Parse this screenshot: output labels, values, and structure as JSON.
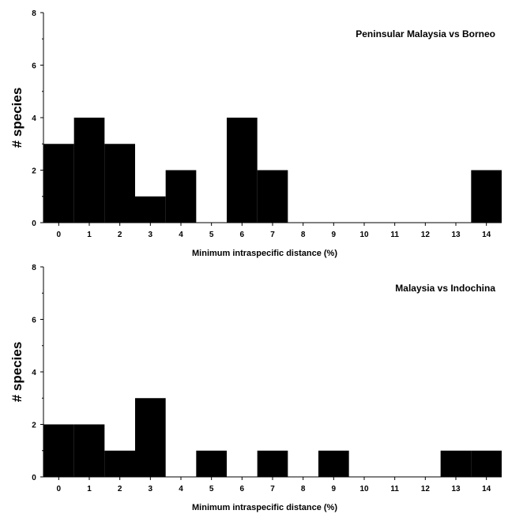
{
  "chart_data": [
    {
      "type": "bar",
      "title": "Peninsular Malaysia vs Borneo",
      "xlabel": "Minimum intraspecific distance (%)",
      "ylabel": "# species",
      "ylim": [
        0,
        8
      ],
      "yticks": [
        0,
        2,
        4,
        6,
        8
      ],
      "categories": [
        "0",
        "1",
        "2",
        "3",
        "4",
        "5",
        "6",
        "7",
        "8",
        "9",
        "10",
        "11",
        "12",
        "13",
        "14"
      ],
      "values": [
        3,
        4,
        3,
        1,
        2,
        0,
        4,
        2,
        0,
        0,
        0,
        0,
        0,
        0,
        2
      ],
      "grid": false
    },
    {
      "type": "bar",
      "title": "Malaysia vs Indochina",
      "xlabel": "Minimum intraspecific distance (%)",
      "ylabel": "# species",
      "ylim": [
        0,
        8
      ],
      "yticks": [
        0,
        2,
        4,
        6,
        8
      ],
      "categories": [
        "0",
        "1",
        "2",
        "3",
        "4",
        "5",
        "6",
        "7",
        "8",
        "9",
        "10",
        "11",
        "12",
        "13",
        "14"
      ],
      "values": [
        2,
        2,
        1,
        3,
        0,
        1,
        0,
        1,
        0,
        1,
        0,
        0,
        0,
        1,
        1
      ],
      "grid": false
    }
  ]
}
